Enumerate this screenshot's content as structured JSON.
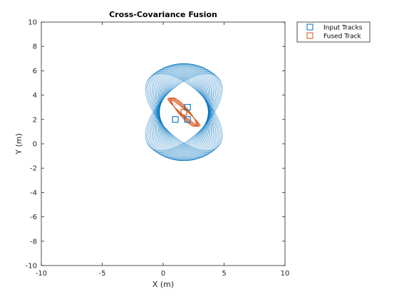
{
  "chart_data": {
    "type": "scatter",
    "title": "Cross-Covariance Fusion",
    "xlabel": "X (m)",
    "ylabel": "Y (m)",
    "xlim": [
      -10,
      10
    ],
    "ylim": [
      -10,
      10
    ],
    "xticks": [
      "-10",
      "-5",
      "0",
      "5",
      "10"
    ],
    "yticks": [
      "10",
      "8",
      "6",
      "4",
      "2",
      "0",
      "-2",
      "-4",
      "-6",
      "-8",
      "-10"
    ],
    "grid": false,
    "legend_position": "outside top-right",
    "series": [
      {
        "name": "Input Tracks",
        "marker": "square",
        "color": "#0072BD",
        "points": [
          [
            1,
            2
          ],
          [
            2,
            3
          ],
          [
            2,
            2
          ]
        ]
      },
      {
        "name": "Fused Track",
        "marker": "square",
        "color": "#D95319",
        "points": [
          [
            1.7,
            2.6
          ]
        ]
      }
    ],
    "input_covariance_ellipses": {
      "color": "#0072BD",
      "count": 30,
      "center": [
        1.7,
        2.6
      ],
      "semi_major_start": 4.0,
      "semi_major_end": 4.0,
      "semi_minor_start": 2.0,
      "semi_minor_end": 2.0,
      "angle_start_deg": 45,
      "angle_end_deg": 135
    },
    "fused_covariance_ellipses": {
      "color": "#D95319",
      "count": 6,
      "center": [
        1.7,
        2.6
      ],
      "semi_major_start": 1.5,
      "semi_major_end": 1.75,
      "semi_minor_start": 0.4,
      "semi_minor_end": 0.2,
      "angle_start_deg": 130,
      "angle_end_deg": 140
    }
  }
}
